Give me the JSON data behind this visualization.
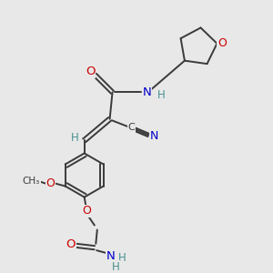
{
  "bg_color": "#e8e8e8",
  "bond_color": "#3a3a3a",
  "atom_colors": {
    "O": "#cc0000",
    "N": "#0000cc",
    "C": "#3a3a3a",
    "H": "#4a9090"
  },
  "lw": 1.4,
  "fs": 8.5
}
